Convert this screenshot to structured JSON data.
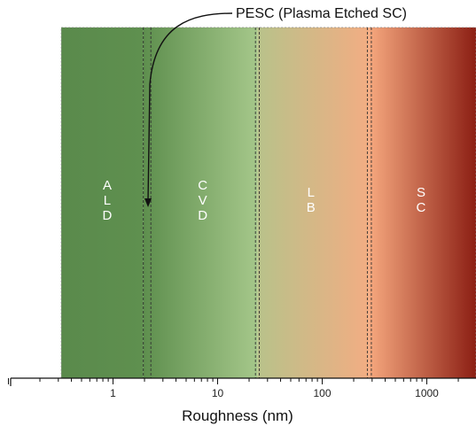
{
  "chart_data": {
    "type": "bar",
    "x_scale": "log",
    "xlim": [
      0.09,
      3500
    ],
    "xlabel": "Roughness (nm)",
    "x_tick_labels": [
      "1",
      "10",
      "100",
      "1000"
    ],
    "x_tick_values": [
      1,
      10,
      100,
      1000
    ],
    "grid": false,
    "regions": [
      {
        "label_letters": [
          "A",
          "L",
          "D"
        ],
        "from": 0.32,
        "to": 1.95,
        "color_start": "#5a8a4c",
        "color_end": "#5f904f"
      },
      {
        "label_letters": [
          "C",
          "V",
          "D"
        ],
        "from": 1.95,
        "to": 24,
        "color_start": "#5e8f4e",
        "color_end": "#a5c78a"
      },
      {
        "label_letters": [
          "L",
          "B"
        ],
        "from": 24,
        "to": 280,
        "color_start": "#b8c28a",
        "color_end": "#f2ad83"
      },
      {
        "label_letters": [
          "S",
          "C"
        ],
        "from": 280,
        "to": 3500,
        "color_start": "#f6a87e",
        "color_end": "#8c1f14"
      }
    ],
    "boundaries": [
      1.95,
      2.3,
      23,
      25,
      270,
      295
    ],
    "annotation": {
      "text": "PESC (Plasma Etched SC)",
      "points_to": 2.0
    }
  }
}
